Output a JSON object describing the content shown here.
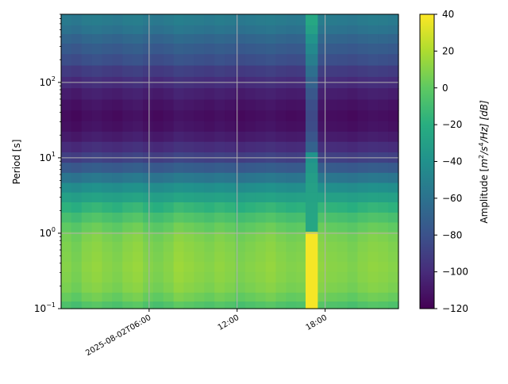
{
  "chart_data": {
    "type": "heatmap",
    "title": "",
    "xlabel": "",
    "ylabel": "Period [s]",
    "y_scale": "log",
    "ylim": [
      0.1,
      800
    ],
    "grid": true,
    "x_range": [
      "2025-08-02T00:00",
      "2025-08-02T23:00"
    ],
    "x_ticks": [
      {
        "value": "2025-08-02T06:00",
        "label": "2025-08-02T06:00"
      },
      {
        "value": "2025-08-02T12:00",
        "label": "12:00"
      },
      {
        "value": "2025-08-02T18:00",
        "label": "18:00"
      }
    ],
    "y_ticks": [
      {
        "value": 0.1,
        "base": "10",
        "exp": "−1"
      },
      {
        "value": 1,
        "base": "10",
        "exp": "0"
      },
      {
        "value": 10,
        "base": "10",
        "exp": "1"
      },
      {
        "value": 100,
        "base": "10",
        "exp": "2"
      }
    ],
    "colorbar": {
      "label_prefix": "Amplitude [",
      "label_unit_main": "m",
      "label_unit_sup1": "2",
      "label_unit_mid": "/s",
      "label_unit_sup2": "4",
      "label_unit_end": "/Hz] [dB]",
      "range": [
        -120,
        40
      ],
      "ticks": [
        40,
        20,
        0,
        -20,
        -40,
        -60,
        -80,
        -100,
        -120
      ],
      "tick_labels": [
        "40",
        "20",
        "0",
        "−20",
        "−40",
        "−60",
        "−80",
        "−100",
        "−120"
      ],
      "colormap": "viridis"
    },
    "period_bands": [
      {
        "period": 650,
        "amplitude": -55
      },
      {
        "period": 500,
        "amplitude": -60
      },
      {
        "period": 380,
        "amplitude": -68
      },
      {
        "period": 280,
        "amplitude": -75
      },
      {
        "period": 200,
        "amplitude": -82
      },
      {
        "period": 140,
        "amplitude": -92
      },
      {
        "period": 100,
        "amplitude": -100
      },
      {
        "period": 70,
        "amplitude": -107
      },
      {
        "period": 50,
        "amplitude": -112
      },
      {
        "period": 36,
        "amplitude": -115
      },
      {
        "period": 26,
        "amplitude": -113
      },
      {
        "period": 19,
        "amplitude": -108
      },
      {
        "period": 14,
        "amplitude": -100
      },
      {
        "period": 10,
        "amplitude": -90
      },
      {
        "period": 7.4,
        "amplitude": -75
      },
      {
        "period": 5.4,
        "amplitude": -58
      },
      {
        "period": 4.0,
        "amplitude": -42
      },
      {
        "period": 3.0,
        "amplitude": -30
      },
      {
        "period": 2.2,
        "amplitude": -18
      },
      {
        "period": 1.6,
        "amplitude": -8
      },
      {
        "period": 1.2,
        "amplitude": 0
      },
      {
        "period": 0.9,
        "amplitude": 6
      },
      {
        "period": 0.66,
        "amplitude": 8
      },
      {
        "period": 0.49,
        "amplitude": 9
      },
      {
        "period": 0.36,
        "amplitude": 10
      },
      {
        "period": 0.26,
        "amplitude": 9
      },
      {
        "period": 0.19,
        "amplitude": 7
      },
      {
        "period": 0.14,
        "amplitude": 2
      },
      {
        "period": 0.11,
        "amplitude": -6
      }
    ],
    "time_variation": [
      0,
      -3,
      2,
      4,
      1,
      -1,
      3,
      5,
      0,
      -2,
      1,
      6,
      4,
      2,
      0,
      3,
      1,
      -2,
      0,
      2,
      4,
      1,
      -1,
      0,
      2,
      3,
      1,
      0,
      -2,
      1,
      3,
      2,
      0
    ],
    "event": {
      "start": "2025-08-02T16:40",
      "end": "2025-08-02T17:30",
      "amplitude_short_period": 38,
      "amplitude_long_period": -45
    }
  }
}
